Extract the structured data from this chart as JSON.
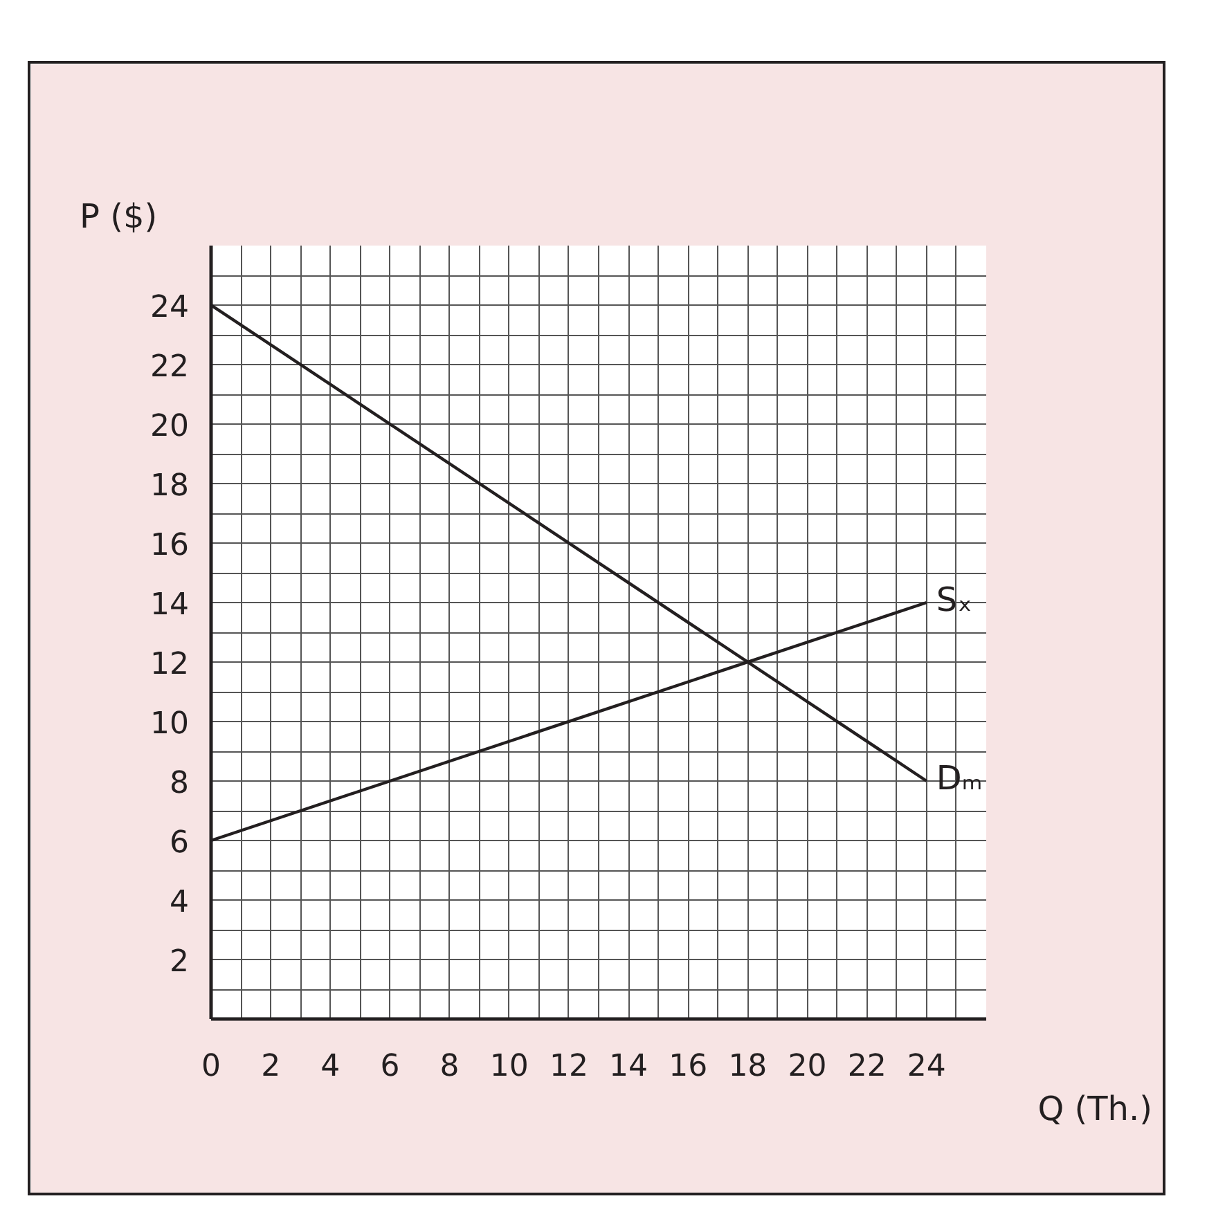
{
  "chart_data": {
    "type": "line",
    "xlabel": "Q (Th.)",
    "ylabel": "P ($)",
    "x": [
      0,
      24
    ],
    "series": [
      {
        "name": "Dₘ",
        "color": "#231f20",
        "values": [
          24,
          8
        ]
      },
      {
        "name": "Sₓ",
        "color": "#231f20",
        "values": [
          6,
          14
        ]
      }
    ],
    "xlim": [
      0,
      26
    ],
    "ylim": [
      0,
      26
    ],
    "xticks": [
      0,
      {
        "value": 1,
        "label": null
      },
      2,
      {
        "value": 3,
        "label": null
      },
      4,
      {
        "value": 5,
        "label": null
      },
      6,
      {
        "value": 7,
        "label": null
      },
      8,
      {
        "value": 9,
        "label": null
      },
      10,
      {
        "value": 11,
        "label": null
      },
      12,
      {
        "value": 13,
        "label": null
      },
      14,
      {
        "value": 15,
        "label": null
      },
      16,
      {
        "value": 17,
        "label": null
      },
      18,
      {
        "value": 19,
        "label": null
      },
      20,
      {
        "value": 21,
        "label": null
      },
      22,
      {
        "value": 23,
        "label": null
      },
      24,
      {
        "value": 25,
        "label": null
      }
    ],
    "yticks": [
      {
        "value": 1,
        "label": null
      },
      2,
      {
        "value": 3,
        "label": null
      },
      4,
      {
        "value": 5,
        "label": null
      },
      6,
      {
        "value": 7,
        "label": null
      },
      8,
      {
        "value": 9,
        "label": null
      },
      10,
      {
        "value": 11,
        "label": null
      },
      12,
      {
        "value": 13,
        "label": null
      },
      14,
      {
        "value": 15,
        "label": null
      },
      16,
      {
        "value": 17,
        "label": null
      },
      18,
      {
        "value": 19,
        "label": null
      },
      20,
      {
        "value": 21,
        "label": null
      },
      22,
      {
        "value": 23,
        "label": null
      },
      24,
      {
        "value": 25,
        "label": null
      }
    ],
    "grid": true,
    "marker": "none",
    "line_style": "solid"
  }
}
